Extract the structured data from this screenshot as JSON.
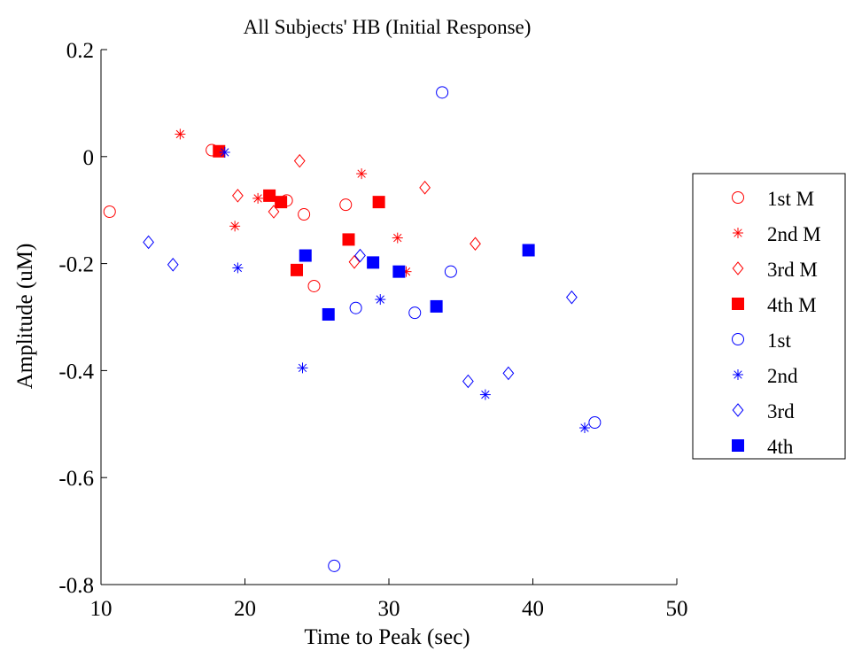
{
  "chart_data": {
    "type": "scatter",
    "title": "All Subjects' HB (Initial Response)",
    "xlabel": "Time to Peak (sec)",
    "ylabel": "Amplitude (uM)",
    "xlim": [
      10,
      50
    ],
    "ylim": [
      -0.8,
      0.2
    ],
    "xticks": [
      "10",
      "20",
      "30",
      "40",
      "50"
    ],
    "yticks": [
      "0.2",
      "0",
      "-0.2",
      "-0.4",
      "-0.6",
      "-0.8"
    ],
    "grid": false,
    "legend_position": "outside-right",
    "series": [
      {
        "name": "1st M",
        "marker": "circle",
        "color": "#ff0000",
        "x": [
          10.6,
          17.7,
          22.9,
          24.1,
          24.8,
          27.0
        ],
        "y": [
          -0.103,
          0.012,
          -0.082,
          -0.108,
          -0.242,
          -0.09
        ]
      },
      {
        "name": "2nd M",
        "marker": "asterisk",
        "color": "#ff0000",
        "x": [
          15.5,
          19.3,
          20.9,
          28.1,
          30.6,
          31.2
        ],
        "y": [
          0.042,
          -0.13,
          -0.078,
          -0.032,
          -0.152,
          -0.215
        ]
      },
      {
        "name": "3rd M",
        "marker": "diamond",
        "color": "#ff0000",
        "x": [
          19.5,
          22.0,
          23.8,
          27.6,
          32.5,
          36.0
        ],
        "y": [
          -0.073,
          -0.103,
          -0.008,
          -0.197,
          -0.058,
          -0.163
        ]
      },
      {
        "name": "4th M",
        "marker": "square",
        "color": "#ff0000",
        "x": [
          18.2,
          21.7,
          22.5,
          23.6,
          27.2,
          29.3
        ],
        "y": [
          0.01,
          -0.073,
          -0.085,
          -0.212,
          -0.155,
          -0.085
        ]
      },
      {
        "name": "1st",
        "marker": "circle",
        "color": "#0000ff",
        "x": [
          26.2,
          27.7,
          31.8,
          33.7,
          34.3,
          44.3
        ],
        "y": [
          -0.765,
          -0.283,
          -0.292,
          0.12,
          -0.215,
          -0.497
        ]
      },
      {
        "name": "2nd",
        "marker": "asterisk",
        "color": "#0000ff",
        "x": [
          18.6,
          19.5,
          24.0,
          29.4,
          36.7,
          43.6
        ],
        "y": [
          0.008,
          -0.208,
          -0.395,
          -0.267,
          -0.445,
          -0.507
        ]
      },
      {
        "name": "3rd",
        "marker": "diamond",
        "color": "#0000ff",
        "x": [
          13.3,
          15.0,
          28.0,
          35.5,
          38.3,
          42.7
        ],
        "y": [
          -0.16,
          -0.202,
          -0.185,
          -0.42,
          -0.405,
          -0.263
        ]
      },
      {
        "name": "4th",
        "marker": "square",
        "color": "#0000ff",
        "x": [
          24.2,
          25.8,
          28.9,
          30.7,
          33.3,
          39.7
        ],
        "y": [
          -0.185,
          -0.295,
          -0.198,
          -0.215,
          -0.28,
          -0.175
        ]
      }
    ]
  }
}
